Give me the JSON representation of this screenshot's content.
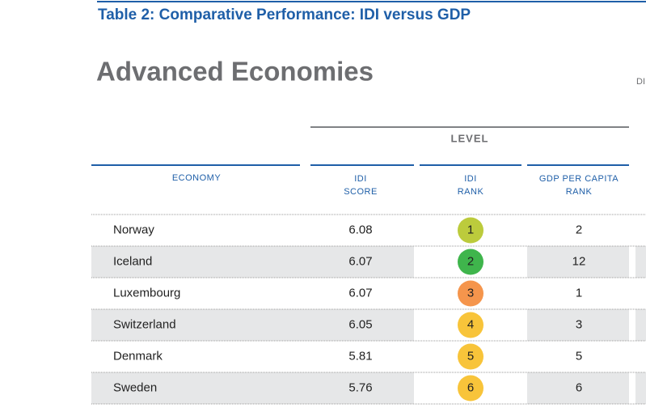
{
  "header": {
    "title": "Table 2: Comparative Performance: IDI versus GDP",
    "subtitle": "Advanced Economies",
    "cut_text": "DII"
  },
  "table": {
    "group_label": "LEVEL",
    "columns": [
      [
        "ECONOMY"
      ],
      [
        "IDI",
        "SCORE"
      ],
      [
        "IDI",
        "RANK"
      ],
      [
        "GDP PER CAPITA",
        "RANK"
      ]
    ],
    "rows": [
      [
        "Norway",
        "6.08",
        1,
        2
      ],
      [
        "Iceland",
        "6.07",
        2,
        12
      ],
      [
        "Luxembourg",
        "6.07",
        3,
        1
      ],
      [
        "Switzerland",
        "6.05",
        4,
        3
      ],
      [
        "Denmark",
        "5.81",
        5,
        5
      ],
      [
        "Sweden",
        "5.76",
        6,
        6
      ]
    ],
    "rank_colors": [
      "#bccb3c",
      "#3fb54c",
      "#f5954c",
      "#f8c43a",
      "#f8c43a",
      "#f8c43a"
    ]
  }
}
